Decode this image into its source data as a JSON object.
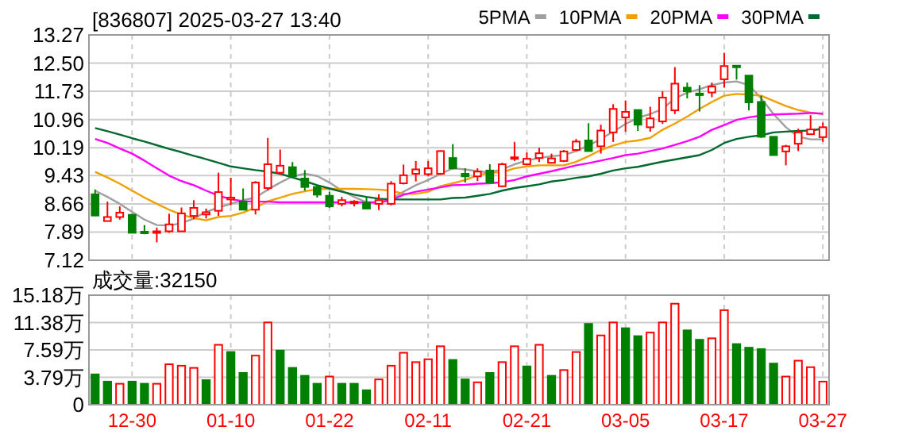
{
  "chart_data": [
    {
      "type": "candlestick",
      "title": "[836807]  2025-03-27  13:40",
      "categories": [
        null,
        null,
        null,
        null,
        null,
        null,
        null,
        null,
        null,
        null,
        null,
        null,
        null,
        null,
        null,
        null,
        null,
        null,
        null,
        null,
        null,
        null,
        null,
        null,
        null,
        null,
        null,
        null,
        null,
        null,
        null,
        null,
        null,
        null,
        null,
        null,
        null,
        null,
        null,
        null,
        null,
        null,
        null,
        null,
        null,
        null,
        null,
        null,
        null,
        null,
        null,
        null,
        null,
        null,
        null,
        null,
        null,
        null,
        null,
        null
      ],
      "ohlc": [
        [
          8.92,
          9.05,
          8.33,
          8.34
        ],
        [
          8.19,
          8.72,
          8.19,
          8.3
        ],
        [
          8.3,
          8.59,
          8.23,
          8.42
        ],
        [
          8.36,
          8.39,
          7.87,
          7.87
        ],
        [
          7.9,
          8.08,
          7.83,
          7.87
        ],
        [
          7.9,
          8.01,
          7.61,
          7.91
        ],
        [
          7.91,
          8.39,
          7.87,
          8.1
        ],
        [
          7.91,
          8.56,
          7.9,
          8.4
        ],
        [
          8.33,
          8.76,
          8.24,
          8.55
        ],
        [
          8.37,
          8.53,
          8.26,
          8.43
        ],
        [
          8.47,
          9.51,
          8.33,
          8.98
        ],
        [
          8.78,
          9.37,
          8.62,
          8.83
        ],
        [
          8.72,
          9.08,
          8.49,
          8.5
        ],
        [
          8.5,
          9.28,
          8.37,
          9.24
        ],
        [
          9.09,
          10.46,
          9.02,
          9.74
        ],
        [
          9.51,
          10.14,
          9.45,
          9.7
        ],
        [
          9.66,
          9.8,
          9.4,
          9.41
        ],
        [
          9.35,
          9.58,
          9.02,
          9.12
        ],
        [
          9.12,
          9.17,
          8.83,
          8.91
        ],
        [
          8.88,
          8.99,
          8.55,
          8.59
        ],
        [
          8.66,
          8.85,
          8.59,
          8.76
        ],
        [
          8.68,
          8.76,
          8.59,
          8.72
        ],
        [
          8.69,
          8.83,
          8.52,
          8.53
        ],
        [
          8.66,
          8.92,
          8.49,
          8.76
        ],
        [
          8.66,
          9.28,
          8.62,
          9.21
        ],
        [
          9.22,
          9.73,
          9.19,
          9.44
        ],
        [
          9.48,
          9.83,
          9.27,
          9.6
        ],
        [
          9.47,
          9.83,
          9.41,
          9.63
        ],
        [
          9.48,
          10.12,
          9.45,
          10.1
        ],
        [
          9.91,
          10.29,
          9.6,
          9.63
        ],
        [
          9.48,
          9.63,
          9.24,
          9.41
        ],
        [
          9.41,
          9.63,
          9.28,
          9.54
        ],
        [
          9.57,
          9.74,
          9.24,
          9.24
        ],
        [
          9.14,
          9.78,
          9.12,
          9.74
        ],
        [
          9.89,
          10.35,
          9.83,
          9.93
        ],
        [
          9.74,
          10.06,
          9.71,
          9.89
        ],
        [
          9.91,
          10.19,
          9.8,
          10.04
        ],
        [
          9.78,
          10.03,
          9.76,
          9.9
        ],
        [
          9.83,
          10.13,
          9.8,
          10.09
        ],
        [
          10.13,
          10.43,
          10.1,
          10.36
        ],
        [
          10.39,
          10.86,
          10.09,
          10.1
        ],
        [
          10.23,
          10.82,
          10.03,
          10.66
        ],
        [
          10.61,
          11.38,
          10.35,
          11.25
        ],
        [
          11.02,
          11.48,
          10.63,
          11.17
        ],
        [
          11.22,
          11.22,
          10.65,
          10.82
        ],
        [
          10.75,
          11.31,
          10.63,
          10.99
        ],
        [
          10.91,
          11.73,
          10.84,
          11.56
        ],
        [
          11.21,
          12.39,
          11.11,
          11.94
        ],
        [
          11.83,
          11.97,
          11.54,
          11.73
        ],
        [
          11.67,
          11.9,
          11.18,
          11.64
        ],
        [
          11.7,
          11.97,
          11.57,
          11.86
        ],
        [
          12.06,
          12.78,
          11.83,
          12.42
        ],
        [
          12.43,
          12.43,
          12.05,
          12.39
        ],
        [
          12.16,
          12.16,
          11.21,
          11.43
        ],
        [
          11.44,
          11.61,
          10.46,
          10.49
        ],
        [
          10.49,
          10.49,
          9.99,
          9.99
        ],
        [
          10.09,
          10.27,
          9.71,
          10.23
        ],
        [
          10.3,
          10.71,
          10.1,
          10.61
        ],
        [
          10.56,
          11.08,
          10.56,
          10.69
        ],
        [
          10.48,
          10.88,
          10.35,
          10.75
        ]
      ],
      "series": [
        {
          "name": "5PMA",
          "type": "line",
          "color": "#a0a0a0",
          "values": [
            9.02,
            8.85,
            8.66,
            8.44,
            8.23,
            8.08,
            8.07,
            8.13,
            8.26,
            8.44,
            8.56,
            8.66,
            8.76,
            8.83,
            9.05,
            9.24,
            9.41,
            9.48,
            9.42,
            9.24,
            9.02,
            8.85,
            8.7,
            8.69,
            8.79,
            8.99,
            9.17,
            9.31,
            9.48,
            9.63,
            9.6,
            9.55,
            9.52,
            9.6,
            9.74,
            9.84,
            9.91,
            9.96,
            9.99,
            10.1,
            10.25,
            10.43,
            10.63,
            10.84,
            11.01,
            11.11,
            11.25,
            11.54,
            11.69,
            11.79,
            11.9,
            11.97,
            12.0,
            11.9,
            11.54,
            11.11,
            10.75,
            10.49,
            10.42,
            10.42
          ]
        },
        {
          "name": "10PMA",
          "type": "line",
          "color": "#f0a000",
          "values": [
            9.53,
            9.38,
            9.21,
            9.02,
            8.83,
            8.66,
            8.5,
            8.37,
            8.27,
            8.21,
            8.3,
            8.33,
            8.42,
            8.56,
            8.73,
            8.83,
            8.93,
            9.0,
            9.06,
            9.07,
            9.07,
            9.07,
            9.06,
            9.05,
            9.02,
            8.93,
            8.93,
            8.99,
            9.14,
            9.22,
            9.31,
            9.44,
            9.51,
            9.52,
            9.63,
            9.68,
            9.71,
            9.71,
            9.71,
            9.81,
            9.96,
            10.13,
            10.25,
            10.35,
            10.39,
            10.46,
            10.68,
            10.85,
            11.04,
            11.25,
            11.44,
            11.61,
            11.66,
            11.64,
            11.61,
            11.47,
            11.33,
            11.22,
            11.15,
            11.11
          ]
        },
        {
          "name": "20PMA",
          "type": "line",
          "color": "#ff00ff",
          "values": [
            10.43,
            10.32,
            10.17,
            10.03,
            9.84,
            9.63,
            9.43,
            9.28,
            9.17,
            9.02,
            8.88,
            8.79,
            8.73,
            8.72,
            8.72,
            8.7,
            8.7,
            8.7,
            8.7,
            8.7,
            8.7,
            8.7,
            8.7,
            8.7,
            8.76,
            8.91,
            8.99,
            9.05,
            9.11,
            9.17,
            9.18,
            9.21,
            9.22,
            9.25,
            9.31,
            9.41,
            9.48,
            9.55,
            9.63,
            9.71,
            9.77,
            9.84,
            9.91,
            9.99,
            10.03,
            10.1,
            10.17,
            10.27,
            10.37,
            10.49,
            10.68,
            10.81,
            10.95,
            11.02,
            11.07,
            11.1,
            11.11,
            11.12,
            11.14,
            11.12
          ]
        },
        {
          "name": "30PMA",
          "type": "line",
          "color": "#006a30",
          "values": [
            10.73,
            10.64,
            10.55,
            10.45,
            10.36,
            10.26,
            10.16,
            10.07,
            9.97,
            9.88,
            9.78,
            9.68,
            9.63,
            9.58,
            9.54,
            9.48,
            9.38,
            9.28,
            9.17,
            9.08,
            8.99,
            8.91,
            8.85,
            8.8,
            8.78,
            8.78,
            8.78,
            8.78,
            8.78,
            8.82,
            8.83,
            8.88,
            8.93,
            9.02,
            9.09,
            9.14,
            9.19,
            9.27,
            9.31,
            9.37,
            9.41,
            9.48,
            9.57,
            9.63,
            9.67,
            9.74,
            9.81,
            9.87,
            9.93,
            9.99,
            10.13,
            10.32,
            10.43,
            10.49,
            10.53,
            10.61,
            10.63,
            10.65,
            10.66,
            10.71
          ]
        }
      ],
      "ylim": [
        7.12,
        13.27
      ],
      "yticks": [
        13.27,
        {
          "value": 12.5,
          "label": "12.50"
        },
        11.73,
        10.96,
        10.19,
        9.43,
        8.66,
        7.89,
        7.12
      ],
      "grid": true,
      "legend": "top right",
      "tick_labels": "y"
    },
    {
      "type": "bar",
      "title": "成交量:32150",
      "categories": [
        null,
        null,
        null,
        "12-30",
        null,
        null,
        null,
        null,
        null,
        null,
        null,
        "01-10",
        null,
        null,
        null,
        null,
        null,
        null,
        null,
        "01-22",
        null,
        null,
        null,
        null,
        null,
        null,
        null,
        "02-11",
        null,
        null,
        null,
        null,
        null,
        null,
        null,
        "02-21",
        null,
        null,
        null,
        null,
        null,
        null,
        null,
        "03-05",
        null,
        null,
        null,
        null,
        null,
        null,
        null,
        "03-17",
        null,
        null,
        null,
        null,
        null,
        null,
        null,
        "03-27"
      ],
      "values": [
        4.2,
        3.2,
        2.9,
        3.2,
        2.9,
        2.9,
        5.6,
        5.4,
        5.1,
        3.4,
        8.3,
        7.3,
        4.4,
        6.8,
        11.4,
        7.5,
        5.1,
        4.0,
        2.9,
        3.9,
        2.9,
        2.9,
        2.0,
        3.5,
        5.4,
        7.2,
        5.9,
        6.3,
        8.1,
        6.2,
        3.5,
        3.1,
        4.4,
        5.9,
        8.1,
        5.3,
        8.3,
        4.0,
        4.8,
        7.3,
        11.2,
        9.6,
        11.4,
        10.6,
        9.5,
        10.0,
        11.4,
        14.0,
        10.3,
        9.0,
        9.2,
        13.1,
        8.4,
        7.9,
        7.7,
        5.7,
        3.9,
        6.1,
        5.2,
        3.2
      ],
      "colors": [
        "#008000",
        "#008000",
        "#ff0000",
        "#008000",
        "#008000",
        "#ff0000",
        "#ff0000",
        "#ff0000",
        "#ff0000",
        "#008000",
        "#ff0000",
        "#008000",
        "#008000",
        "#ff0000",
        "#ff0000",
        "#008000",
        "#008000",
        "#008000",
        "#008000",
        "#ff0000",
        "#008000",
        "#008000",
        "#008000",
        "#ff0000",
        "#ff0000",
        "#ff0000",
        "#ff0000",
        "#ff0000",
        "#ff0000",
        "#008000",
        "#008000",
        "#ff0000",
        "#008000",
        "#ff0000",
        "#ff0000",
        "#008000",
        "#ff0000",
        "#008000",
        "#ff0000",
        "#ff0000",
        "#008000",
        "#ff0000",
        "#ff0000",
        "#008000",
        "#008000",
        "#ff0000",
        "#ff0000",
        "#ff0000",
        "#008000",
        "#008000",
        "#ff0000",
        "#ff0000",
        "#008000",
        "#008000",
        "#008000",
        "#008000",
        "#ff0000",
        "#ff0000",
        "#ff0000",
        "#ff0000"
      ],
      "ylim": [
        0,
        15.18
      ],
      "yticks": [
        0,
        {
          "value": 3.79,
          "label": "3.79万"
        },
        {
          "value": 7.59,
          "label": "7.59万"
        },
        {
          "value": 11.38,
          "label": "11.38万"
        },
        {
          "value": 15.18,
          "label": "15.18万"
        }
      ],
      "grid": true
    }
  ]
}
